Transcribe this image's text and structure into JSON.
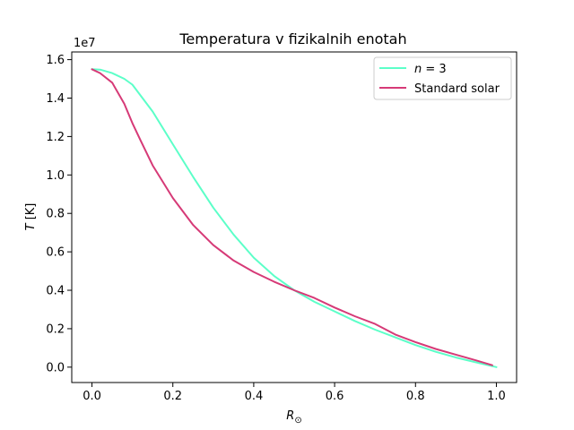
{
  "chart_data": {
    "type": "line",
    "title": "Temperatura v fizikalnih enotah",
    "xlabel": "R_⊙",
    "ylabel": "T [K]",
    "offset_label": "1e7",
    "xlim": [
      -0.05,
      1.05
    ],
    "ylim": [
      -0.08,
      1.64
    ],
    "x_ticks": [
      0.0,
      0.2,
      0.4,
      0.6,
      0.8,
      1.0
    ],
    "x_tick_labels": [
      "0.0",
      "0.2",
      "0.4",
      "0.6",
      "0.8",
      "1.0"
    ],
    "y_ticks": [
      0.0,
      0.2,
      0.4,
      0.6,
      0.8,
      1.0,
      1.2,
      1.4,
      1.6
    ],
    "y_tick_labels": [
      "0.0",
      "0.2",
      "0.4",
      "0.6",
      "0.8",
      "1.0",
      "1.2",
      "1.4",
      "1.6"
    ],
    "grid": false,
    "legend_position": "top-right",
    "series": [
      {
        "name": "n = 3",
        "color": "#5cffc8",
        "x": [
          0.0,
          0.02,
          0.05,
          0.08,
          0.1,
          0.15,
          0.2,
          0.25,
          0.3,
          0.35,
          0.4,
          0.45,
          0.5,
          0.55,
          0.6,
          0.65,
          0.7,
          0.75,
          0.8,
          0.85,
          0.9,
          0.95,
          1.0
        ],
        "values": [
          1.55,
          1.548,
          1.53,
          1.5,
          1.47,
          1.33,
          1.16,
          0.99,
          0.83,
          0.69,
          0.57,
          0.475,
          0.4,
          0.34,
          0.29,
          0.24,
          0.195,
          0.155,
          0.115,
          0.08,
          0.05,
          0.025,
          0.0
        ]
      },
      {
        "name": "Standard solar",
        "color": "#d63a77",
        "x": [
          0.0,
          0.02,
          0.05,
          0.08,
          0.1,
          0.12,
          0.15,
          0.2,
          0.25,
          0.3,
          0.35,
          0.4,
          0.45,
          0.5,
          0.55,
          0.6,
          0.65,
          0.7,
          0.75,
          0.8,
          0.85,
          0.9,
          0.95,
          0.99
        ],
        "values": [
          1.55,
          1.53,
          1.48,
          1.37,
          1.27,
          1.18,
          1.05,
          0.88,
          0.74,
          0.635,
          0.555,
          0.495,
          0.445,
          0.4,
          0.36,
          0.31,
          0.265,
          0.225,
          0.17,
          0.13,
          0.095,
          0.065,
          0.035,
          0.01
        ]
      }
    ]
  }
}
